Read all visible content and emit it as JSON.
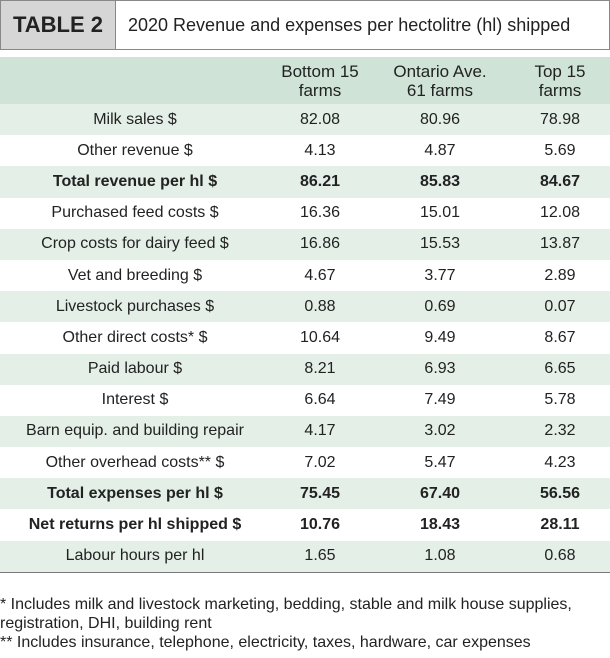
{
  "header": {
    "label": "TABLE 2",
    "title": "2020 Revenue and expenses per hectolitre (hl) shipped"
  },
  "table": {
    "columns": [
      "Bottom 15\nfarms",
      "Ontario Ave.\n61 farms",
      "Top 15\nfarms"
    ],
    "rows": [
      [
        "Milk sales $",
        "82.08",
        "80.96",
        "78.98"
      ],
      [
        "Other revenue $",
        "4.13",
        "4.87",
        "5.69"
      ],
      [
        "Total revenue per hl $",
        "86.21",
        "85.83",
        "84.67"
      ],
      [
        "Purchased feed costs $",
        "16.36",
        "15.01",
        "12.08"
      ],
      [
        "Crop costs for dairy feed $",
        "16.86",
        "15.53",
        "13.87"
      ],
      [
        "Vet and breeding $",
        "4.67",
        "3.77",
        "2.89"
      ],
      [
        "Livestock purchases $",
        "0.88",
        "0.69",
        "0.07"
      ],
      [
        "Other direct costs* $",
        "10.64",
        "9.49",
        "8.67"
      ],
      [
        "Paid labour $",
        "8.21",
        "6.93",
        "6.65"
      ],
      [
        "Interest $",
        "6.64",
        "7.49",
        "5.78"
      ],
      [
        "Barn equip. and building repair",
        "4.17",
        "3.02",
        "2.32"
      ],
      [
        "Other overhead costs** $",
        "7.02",
        "5.47",
        "4.23"
      ],
      [
        "Total expenses per hl $",
        "75.45",
        "67.40",
        "56.56"
      ],
      [
        "Net returns per hl shipped $",
        "10.76",
        "18.43",
        "28.11"
      ],
      [
        "Labour hours per hl",
        "1.65",
        "1.08",
        "0.68"
      ]
    ],
    "bold_rows": [
      2,
      12,
      13
    ]
  },
  "footnotes": [
    "* Includes milk and livestock marketing, bedding, stable and milk house supplies, registration, DHI, building rent",
    "** Includes insurance, telephone, electricity, taxes, hardware, car expenses"
  ]
}
